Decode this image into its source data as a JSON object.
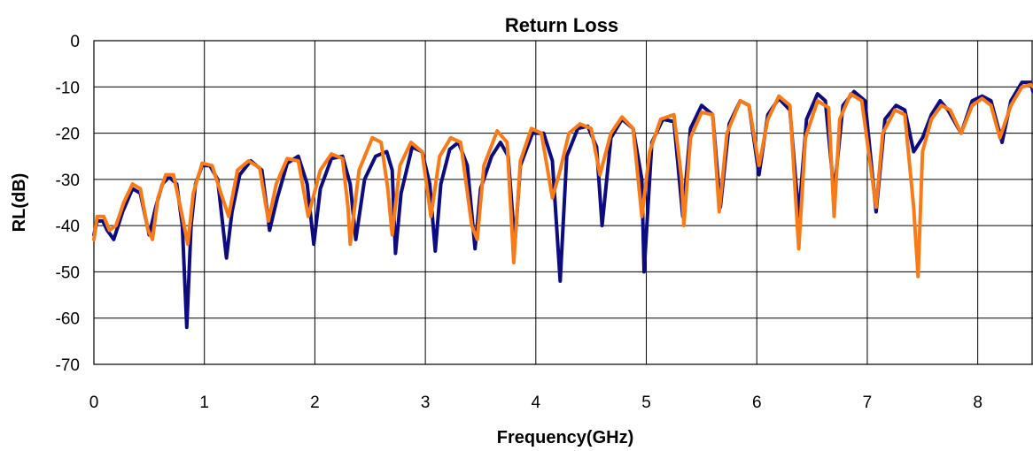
{
  "chart_data": {
    "type": "line",
    "title": "Return Loss",
    "xlabel": "Frequency(GHz)",
    "ylabel": "RL(dB)",
    "xlim": [
      0,
      8.5
    ],
    "ylim": [
      -70,
      0
    ],
    "xticks": [
      0,
      1,
      2,
      3,
      4,
      5,
      6,
      7,
      8
    ],
    "yticks": [
      0,
      -10,
      -20,
      -30,
      -40,
      -50,
      -60,
      -70
    ],
    "grid": true,
    "legend": "none",
    "series": [
      {
        "color": "#0c0c80",
        "points": [
          [
            0.0,
            -42
          ],
          [
            0.03,
            -39
          ],
          [
            0.08,
            -39
          ],
          [
            0.12,
            -41
          ],
          [
            0.18,
            -43
          ],
          [
            0.26,
            -37
          ],
          [
            0.35,
            -32
          ],
          [
            0.42,
            -33
          ],
          [
            0.5,
            -42
          ],
          [
            0.56,
            -36
          ],
          [
            0.62,
            -31
          ],
          [
            0.68,
            -29.5
          ],
          [
            0.75,
            -31
          ],
          [
            0.8,
            -40
          ],
          [
            0.84,
            -62
          ],
          [
            0.88,
            -40
          ],
          [
            0.92,
            -31
          ],
          [
            0.98,
            -27
          ],
          [
            1.05,
            -27
          ],
          [
            1.12,
            -30
          ],
          [
            1.2,
            -47
          ],
          [
            1.25,
            -37
          ],
          [
            1.32,
            -29
          ],
          [
            1.42,
            -26
          ],
          [
            1.52,
            -28
          ],
          [
            1.59,
            -41
          ],
          [
            1.66,
            -34
          ],
          [
            1.75,
            -26.5
          ],
          [
            1.85,
            -25
          ],
          [
            1.93,
            -31
          ],
          [
            1.99,
            -44
          ],
          [
            2.05,
            -32
          ],
          [
            2.15,
            -25.5
          ],
          [
            2.25,
            -25
          ],
          [
            2.32,
            -31
          ],
          [
            2.37,
            -43
          ],
          [
            2.45,
            -30
          ],
          [
            2.55,
            -25
          ],
          [
            2.65,
            -24
          ],
          [
            2.7,
            -28
          ],
          [
            2.73,
            -46
          ],
          [
            2.78,
            -33
          ],
          [
            2.88,
            -23
          ],
          [
            2.97,
            -24
          ],
          [
            3.04,
            -31
          ],
          [
            3.09,
            -45.5
          ],
          [
            3.14,
            -31
          ],
          [
            3.22,
            -23.5
          ],
          [
            3.3,
            -22
          ],
          [
            3.38,
            -27
          ],
          [
            3.45,
            -45
          ],
          [
            3.5,
            -32
          ],
          [
            3.6,
            -25
          ],
          [
            3.68,
            -22
          ],
          [
            3.75,
            -25
          ],
          [
            3.81,
            -44
          ],
          [
            3.86,
            -27
          ],
          [
            3.97,
            -20
          ],
          [
            4.07,
            -20
          ],
          [
            4.15,
            -26
          ],
          [
            4.22,
            -52
          ],
          [
            4.28,
            -25
          ],
          [
            4.38,
            -19
          ],
          [
            4.47,
            -18.5
          ],
          [
            4.55,
            -23
          ],
          [
            4.6,
            -40
          ],
          [
            4.68,
            -21
          ],
          [
            4.78,
            -17
          ],
          [
            4.88,
            -19
          ],
          [
            4.96,
            -30
          ],
          [
            4.98,
            -50
          ],
          [
            5.05,
            -22
          ],
          [
            5.15,
            -17
          ],
          [
            5.25,
            -17.5
          ],
          [
            5.33,
            -38
          ],
          [
            5.4,
            -19
          ],
          [
            5.5,
            -14
          ],
          [
            5.6,
            -16
          ],
          [
            5.67,
            -36
          ],
          [
            5.75,
            -18
          ],
          [
            5.85,
            -13
          ],
          [
            5.93,
            -14
          ],
          [
            6.02,
            -29
          ],
          [
            6.1,
            -16
          ],
          [
            6.2,
            -12.5
          ],
          [
            6.3,
            -15
          ],
          [
            6.38,
            -38
          ],
          [
            6.45,
            -17
          ],
          [
            6.55,
            -11.5
          ],
          [
            6.62,
            -13
          ],
          [
            6.7,
            -33
          ],
          [
            6.78,
            -14
          ],
          [
            6.88,
            -11
          ],
          [
            6.98,
            -13
          ],
          [
            7.08,
            -37
          ],
          [
            7.16,
            -17
          ],
          [
            7.26,
            -14
          ],
          [
            7.34,
            -15
          ],
          [
            7.42,
            -24
          ],
          [
            7.5,
            -21
          ],
          [
            7.58,
            -16
          ],
          [
            7.66,
            -13
          ],
          [
            7.73,
            -15
          ],
          [
            7.85,
            -20
          ],
          [
            7.95,
            -13
          ],
          [
            8.04,
            -12
          ],
          [
            8.12,
            -13
          ],
          [
            8.22,
            -22
          ],
          [
            8.3,
            -13
          ],
          [
            8.4,
            -9
          ],
          [
            8.48,
            -9
          ],
          [
            8.5,
            -11
          ]
        ]
      },
      {
        "color": "#f97b17",
        "points": [
          [
            0.0,
            -43
          ],
          [
            0.03,
            -38
          ],
          [
            0.09,
            -38
          ],
          [
            0.14,
            -41
          ],
          [
            0.2,
            -40
          ],
          [
            0.27,
            -35
          ],
          [
            0.35,
            -31
          ],
          [
            0.42,
            -32
          ],
          [
            0.49,
            -41
          ],
          [
            0.53,
            -43
          ],
          [
            0.58,
            -34
          ],
          [
            0.65,
            -29
          ],
          [
            0.72,
            -29
          ],
          [
            0.8,
            -38
          ],
          [
            0.85,
            -44
          ],
          [
            0.9,
            -33
          ],
          [
            0.98,
            -26.5
          ],
          [
            1.07,
            -27
          ],
          [
            1.15,
            -33
          ],
          [
            1.22,
            -38
          ],
          [
            1.3,
            -28
          ],
          [
            1.4,
            -26
          ],
          [
            1.5,
            -27.5
          ],
          [
            1.58,
            -39
          ],
          [
            1.65,
            -31
          ],
          [
            1.75,
            -25.5
          ],
          [
            1.85,
            -26
          ],
          [
            1.94,
            -38
          ],
          [
            2.05,
            -28
          ],
          [
            2.15,
            -24.5
          ],
          [
            2.25,
            -25.5
          ],
          [
            2.3,
            -36
          ],
          [
            2.32,
            -44
          ],
          [
            2.4,
            -28
          ],
          [
            2.52,
            -21
          ],
          [
            2.6,
            -22
          ],
          [
            2.66,
            -32
          ],
          [
            2.7,
            -42
          ],
          [
            2.77,
            -27
          ],
          [
            2.87,
            -22
          ],
          [
            2.97,
            -24
          ],
          [
            3.05,
            -38
          ],
          [
            3.13,
            -25
          ],
          [
            3.23,
            -21
          ],
          [
            3.32,
            -22
          ],
          [
            3.42,
            -40
          ],
          [
            3.47,
            -43
          ],
          [
            3.53,
            -27
          ],
          [
            3.65,
            -19.5
          ],
          [
            3.74,
            -22
          ],
          [
            3.8,
            -48
          ],
          [
            3.86,
            -26
          ],
          [
            3.96,
            -19
          ],
          [
            4.05,
            -20
          ],
          [
            4.15,
            -34
          ],
          [
            4.22,
            -28
          ],
          [
            4.3,
            -20
          ],
          [
            4.4,
            -18
          ],
          [
            4.5,
            -19
          ],
          [
            4.58,
            -29
          ],
          [
            4.68,
            -20
          ],
          [
            4.78,
            -16.5
          ],
          [
            4.88,
            -19
          ],
          [
            4.96,
            -38
          ],
          [
            5.03,
            -24
          ],
          [
            5.13,
            -17
          ],
          [
            5.25,
            -16
          ],
          [
            5.32,
            -30
          ],
          [
            5.34,
            -40
          ],
          [
            5.4,
            -21
          ],
          [
            5.5,
            -15.5
          ],
          [
            5.6,
            -16
          ],
          [
            5.66,
            -37
          ],
          [
            5.73,
            -20
          ],
          [
            5.85,
            -13
          ],
          [
            5.93,
            -14
          ],
          [
            6.02,
            -27
          ],
          [
            6.1,
            -17
          ],
          [
            6.2,
            -12
          ],
          [
            6.3,
            -14
          ],
          [
            6.38,
            -45
          ],
          [
            6.44,
            -21
          ],
          [
            6.55,
            -13
          ],
          [
            6.65,
            -14.5
          ],
          [
            6.7,
            -38
          ],
          [
            6.75,
            -17
          ],
          [
            6.85,
            -11.5
          ],
          [
            6.95,
            -13
          ],
          [
            7.08,
            -36
          ],
          [
            7.14,
            -20
          ],
          [
            7.25,
            -15
          ],
          [
            7.34,
            -16
          ],
          [
            7.42,
            -36
          ],
          [
            7.46,
            -51
          ],
          [
            7.5,
            -24
          ],
          [
            7.58,
            -17
          ],
          [
            7.67,
            -14
          ],
          [
            7.75,
            -15
          ],
          [
            7.85,
            -20
          ],
          [
            7.95,
            -14
          ],
          [
            8.04,
            -12.5
          ],
          [
            8.12,
            -14
          ],
          [
            8.2,
            -21
          ],
          [
            8.3,
            -14
          ],
          [
            8.4,
            -10
          ],
          [
            8.48,
            -9.5
          ],
          [
            8.5,
            -10
          ]
        ]
      }
    ]
  }
}
